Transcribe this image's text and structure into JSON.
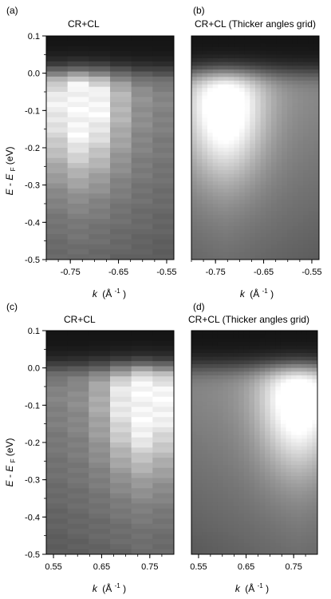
{
  "chart_data": [
    {
      "type": "heatmap",
      "panel_label": "(a)",
      "title": "CR+CL",
      "xlabel_k": "k",
      "xlabel_unit": "(Å",
      "xlabel_exp": "-1",
      "xlabel_close": ")",
      "ylabel_E": "E",
      "ylabel_sep": "-",
      "ylabel_E2": "E",
      "ylabel_sub": "F",
      "ylabel_unit": " (eV)",
      "xlim": [
        -0.8,
        -0.535
      ],
      "ylim": [
        -0.5,
        0.1
      ],
      "x_ticks": [
        -0.75,
        -0.65,
        -0.55
      ],
      "x_tick_labels": [
        "-0.75",
        "-0.65",
        "-0.55"
      ],
      "y_ticks": [
        0.1,
        0.0,
        -0.1,
        -0.2,
        -0.3,
        -0.4,
        -0.5
      ],
      "y_tick_labels": [
        "0.1",
        "0.0",
        "-0.1",
        "-0.2",
        "-0.3",
        "-0.4",
        "-0.5"
      ],
      "band_center": [
        -0.73,
        -0.08
      ],
      "style": "coarse"
    },
    {
      "type": "heatmap",
      "panel_label": "(b)",
      "title": "CR+CL (Thicker angles grid)",
      "xlabel_k": "k",
      "xlabel_unit": "(Å",
      "xlabel_exp": "-1",
      "xlabel_close": ")",
      "xlim": [
        -0.8,
        -0.535
      ],
      "ylim": [
        -0.5,
        0.1
      ],
      "x_ticks": [
        -0.75,
        -0.65,
        -0.55
      ],
      "x_tick_labels": [
        "-0.75",
        "-0.65",
        "-0.55"
      ],
      "band_center": [
        -0.73,
        -0.09
      ],
      "style": "fine"
    },
    {
      "type": "heatmap",
      "panel_label": "(c)",
      "title": "CR+CL",
      "xlabel_k": "k",
      "xlabel_unit": "(Å",
      "xlabel_exp": "-1",
      "xlabel_close": ")",
      "ylabel_E": "E",
      "ylabel_sep": "-",
      "ylabel_E2": "E",
      "ylabel_sub": "F",
      "ylabel_unit": " (eV)",
      "xlim": [
        0.535,
        0.8
      ],
      "ylim": [
        -0.5,
        0.1
      ],
      "x_ticks": [
        0.55,
        0.65,
        0.75
      ],
      "x_tick_labels": [
        "0.55",
        "0.65",
        "0.75"
      ],
      "y_ticks": [
        0.1,
        0.0,
        -0.1,
        -0.2,
        -0.3,
        -0.4,
        -0.5
      ],
      "y_tick_labels": [
        "0.1",
        "0.0",
        "-0.1",
        "-0.2",
        "-0.3",
        "-0.4",
        "-0.5"
      ],
      "band_center": [
        0.74,
        -0.08
      ],
      "style": "coarse"
    },
    {
      "type": "heatmap",
      "panel_label": "(d)",
      "title": "CR+CL (Thicker angles grid)",
      "xlabel_k": "k",
      "xlabel_unit": "(Å",
      "xlabel_exp": "-1",
      "xlabel_close": ")",
      "xlim": [
        0.535,
        0.8
      ],
      "ylim": [
        -0.5,
        0.1
      ],
      "x_ticks": [
        0.55,
        0.65,
        0.75
      ],
      "x_tick_labels": [
        "0.55",
        "0.65",
        "0.75"
      ],
      "band_center": [
        0.76,
        -0.08
      ],
      "style": "fine"
    }
  ]
}
